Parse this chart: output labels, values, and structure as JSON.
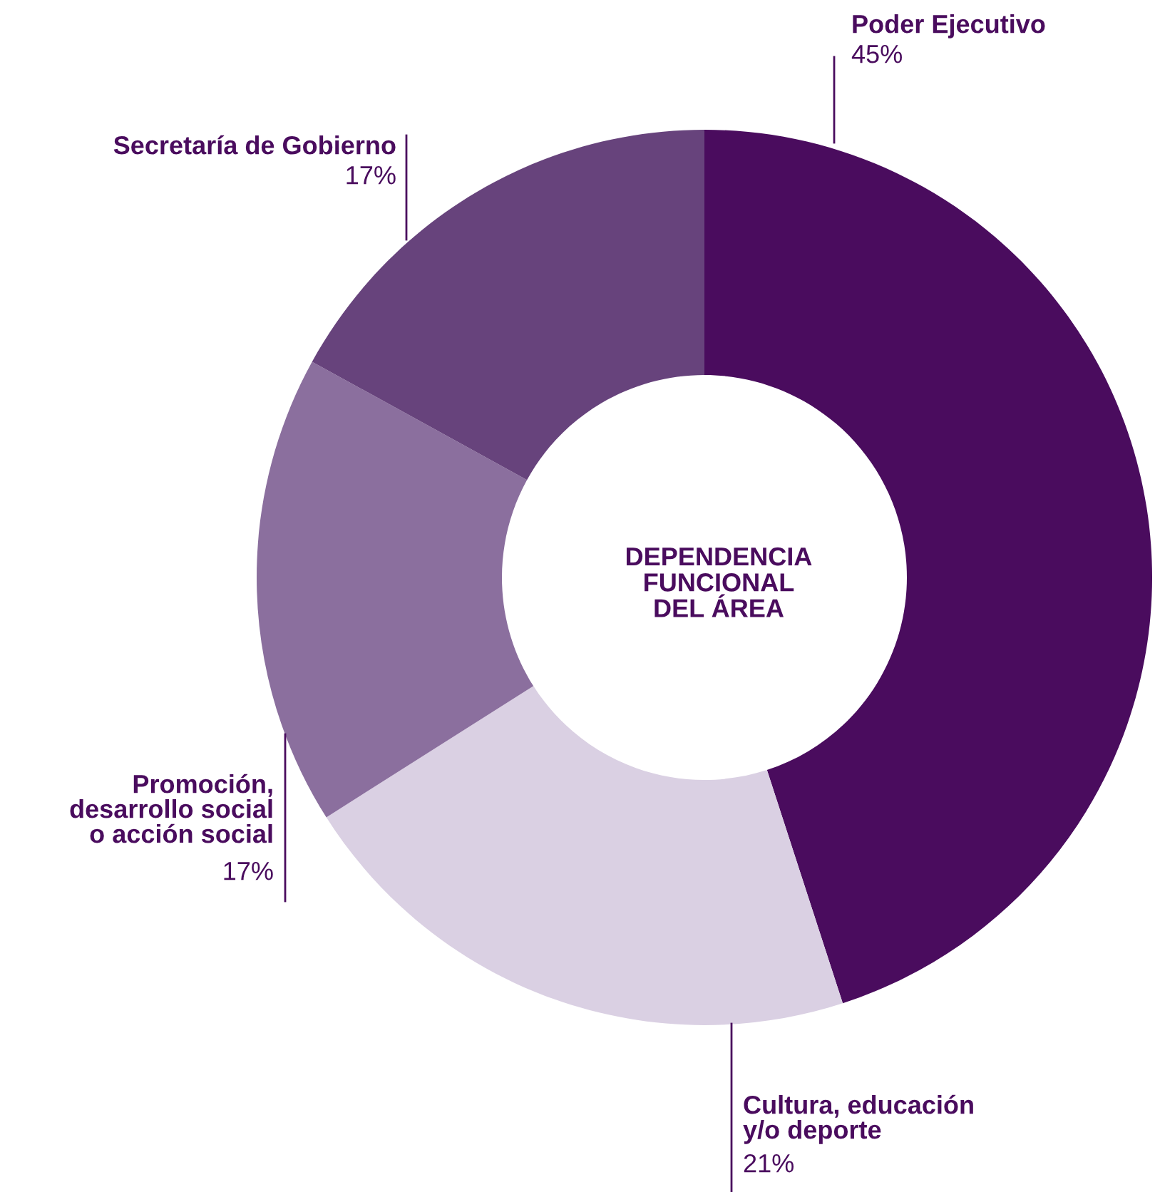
{
  "chart_data": {
    "type": "donut",
    "title": "DEPENDENCIA\nFUNCIONAL\nDEL ÁREA",
    "categories": [
      "Poder Ejecutivo",
      "Cultura, educación\ny/o deporte",
      "Promoción,\ndesarrollo social\no acción social",
      "Secretaría de Gobierno"
    ],
    "values": [
      45,
      21,
      17,
      17
    ],
    "value_labels": [
      "45%",
      "21%",
      "17%",
      "17%"
    ],
    "colors": [
      "#4a0c5e",
      "#dad0e3",
      "#8b6f9e",
      "#67437c"
    ],
    "legend": false
  }
}
